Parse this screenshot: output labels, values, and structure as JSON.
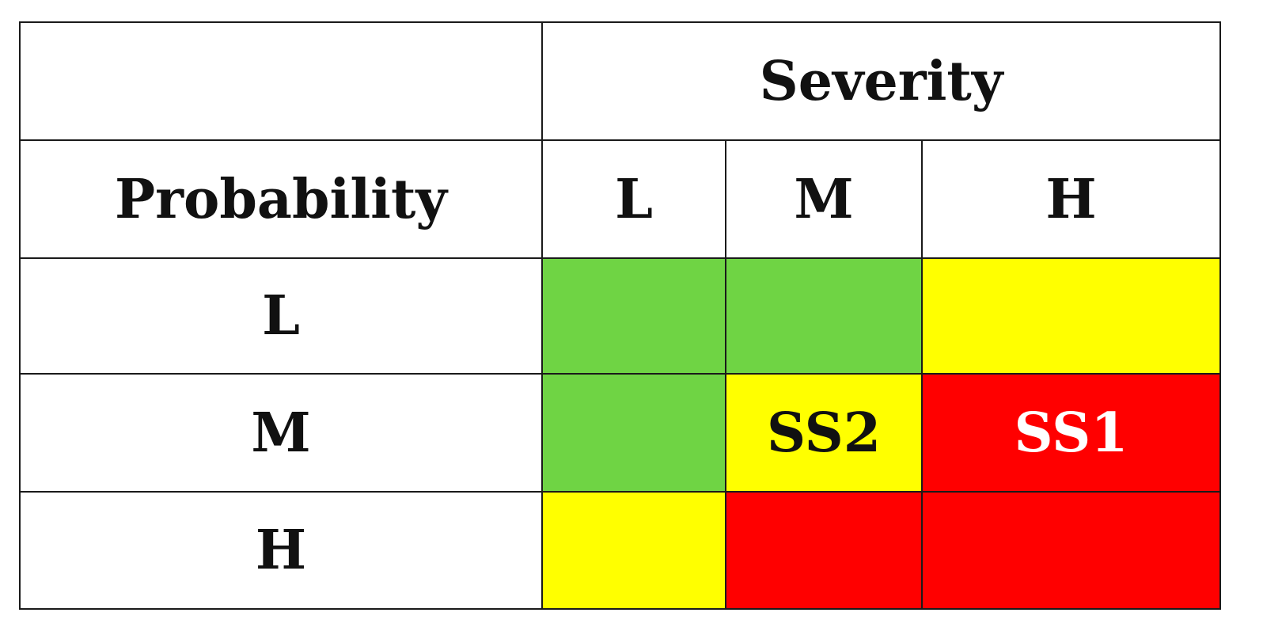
{
  "header": {
    "severity_label": "Severity",
    "probability_label": "Probability"
  },
  "severity_levels": [
    "L",
    "M",
    "H"
  ],
  "probability_levels": [
    "L",
    "M",
    "H"
  ],
  "colors": {
    "green": "#6fd444",
    "yellow": "#ffff00",
    "red": "#ff0000",
    "border": "#1a1a1a"
  },
  "matrix": [
    [
      {
        "level": "green",
        "label": ""
      },
      {
        "level": "green",
        "label": ""
      },
      {
        "level": "yellow",
        "label": ""
      }
    ],
    [
      {
        "level": "green",
        "label": ""
      },
      {
        "level": "yellow",
        "label": "SS2"
      },
      {
        "level": "red",
        "label": "SS1"
      }
    ],
    [
      {
        "level": "yellow",
        "label": ""
      },
      {
        "level": "red",
        "label": ""
      },
      {
        "level": "red",
        "label": ""
      }
    ]
  ]
}
